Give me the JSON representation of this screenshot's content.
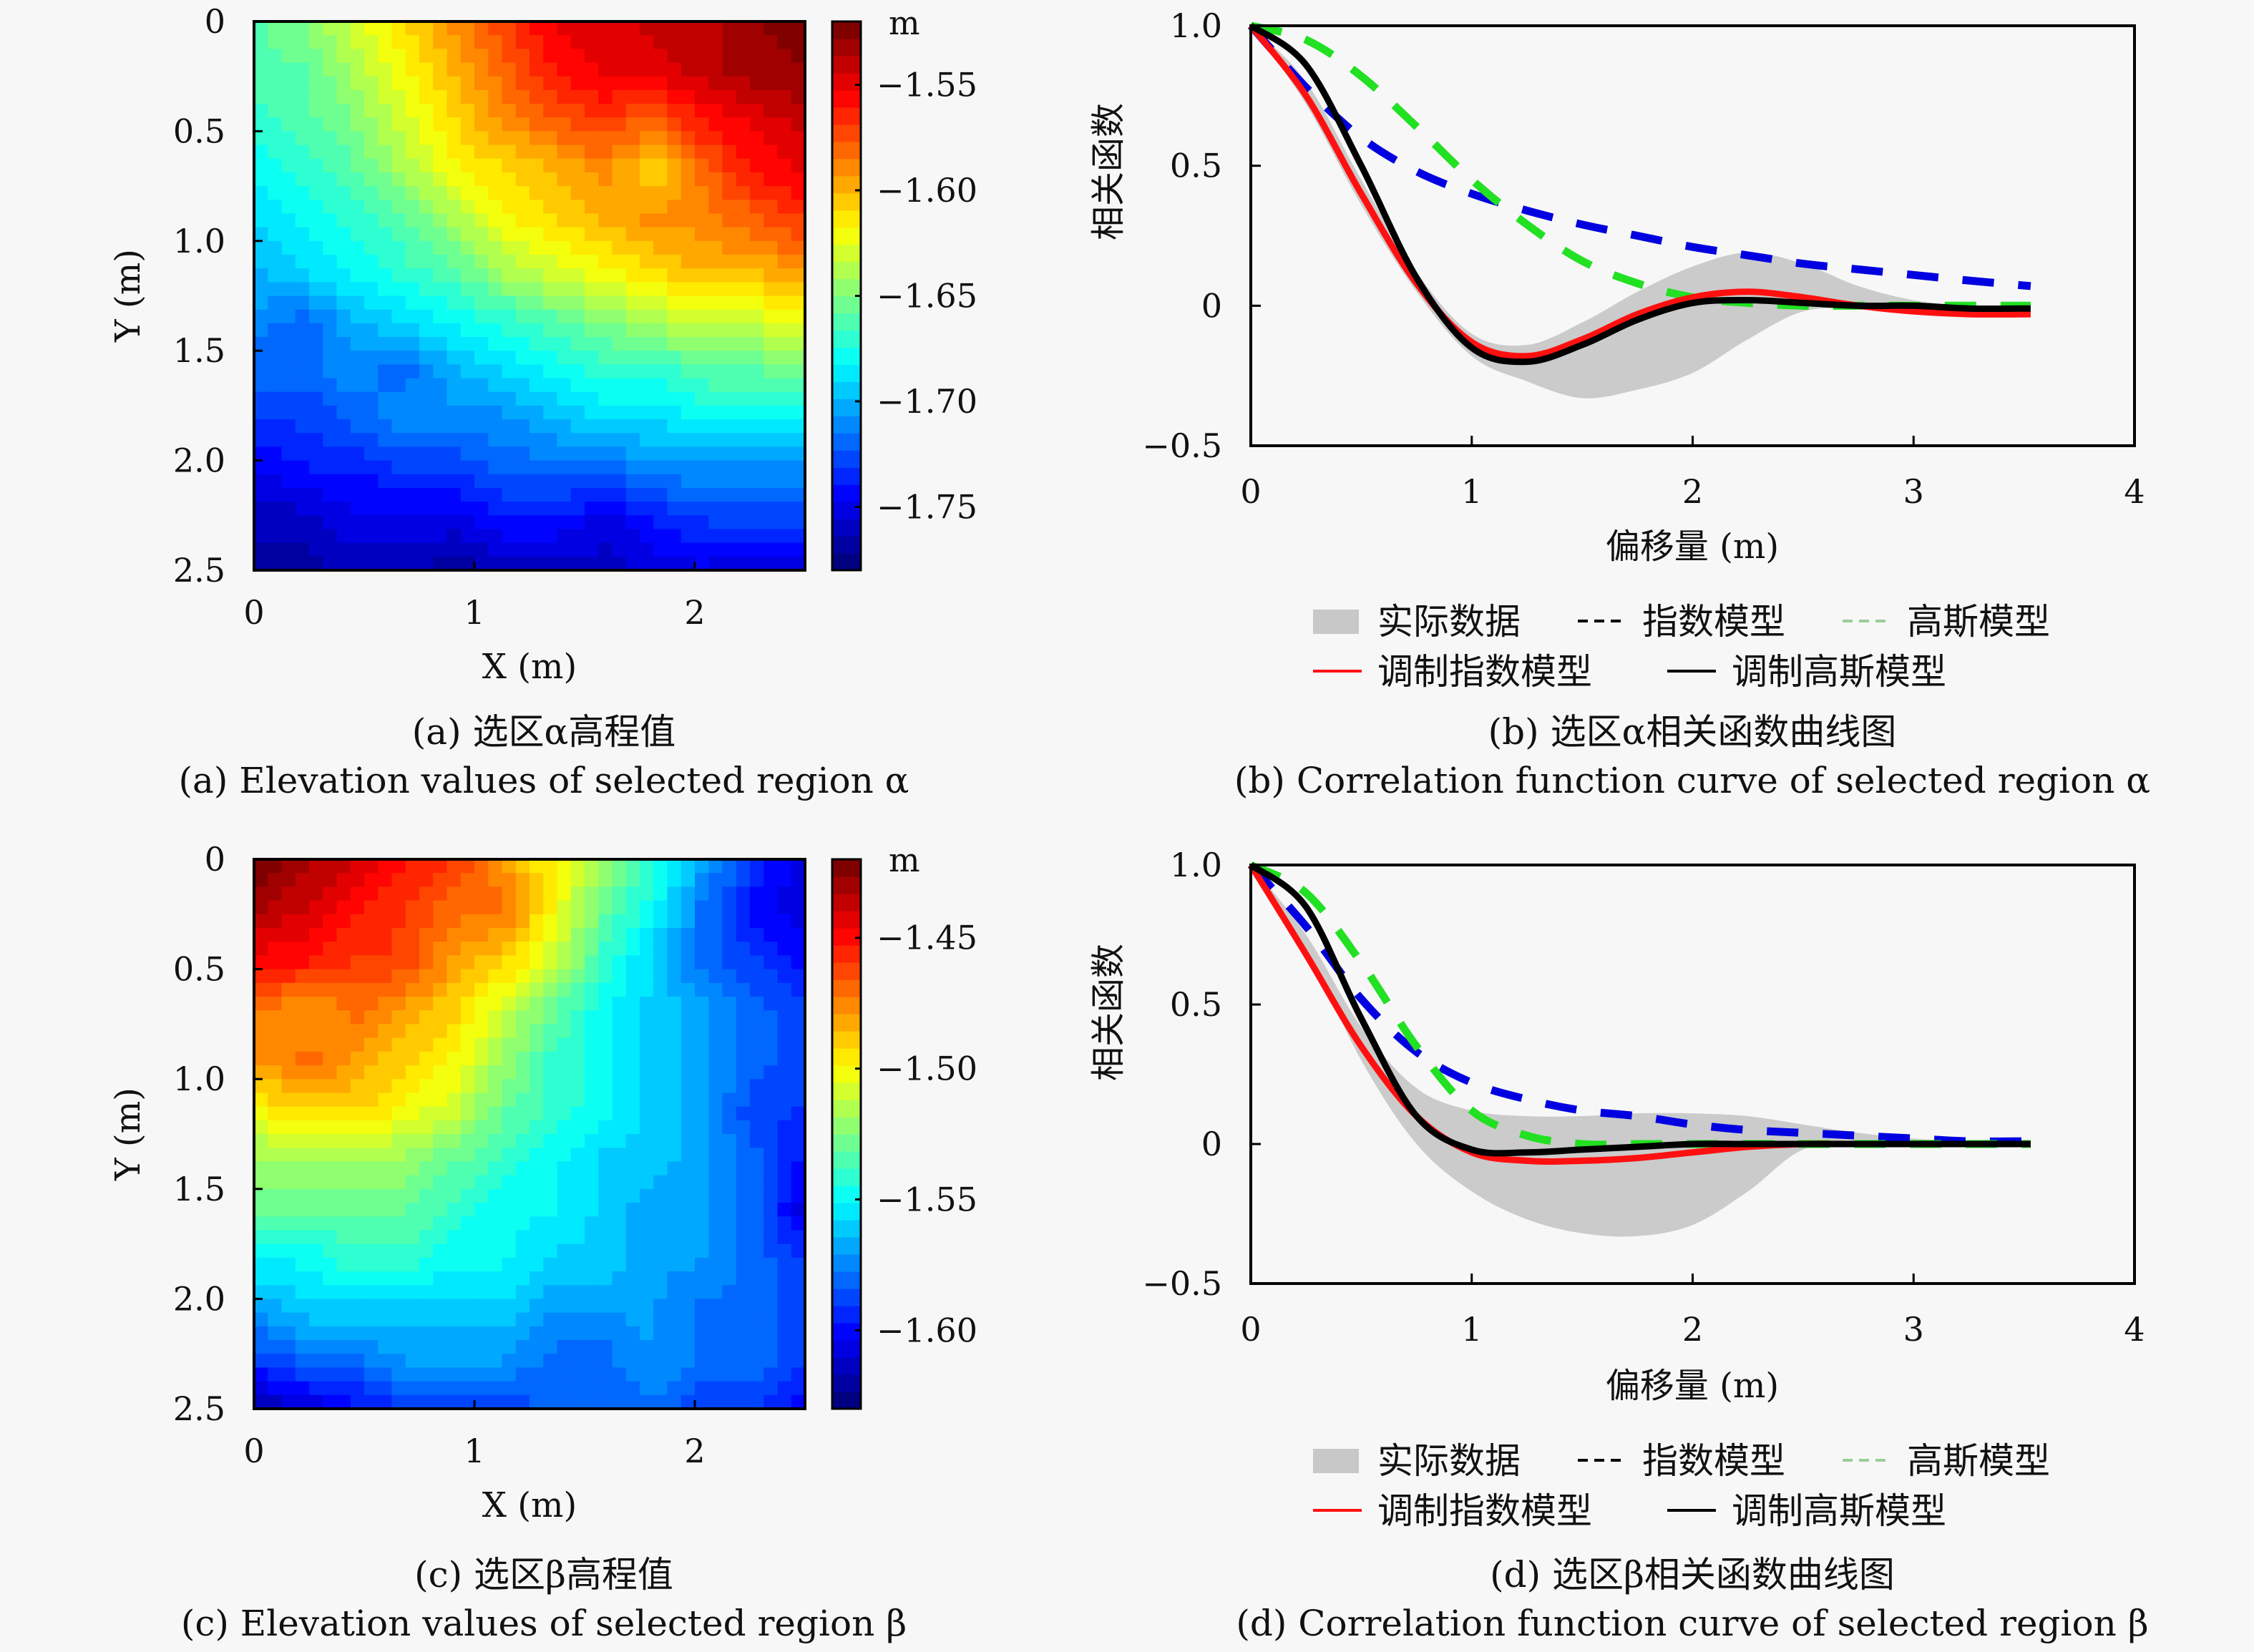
{
  "figure": {
    "panels": [
      {
        "id": "a",
        "caption_zh": "(a) 选区α高程值",
        "caption_en": "(a) Elevation values of selected region α",
        "xlabel": "X (m)",
        "ylabel": "Y (m)",
        "colorbar_unit": "m"
      },
      {
        "id": "b",
        "caption_zh": "(b) 选区α相关函数曲线图",
        "caption_en": "(b) Correlation function curve of selected region α",
        "xlabel": "偏移量 (m)",
        "ylabel": "相关函数"
      },
      {
        "id": "c",
        "caption_zh": "(c) 选区β高程值",
        "caption_en": "(c) Elevation values of selected region β",
        "xlabel": "X (m)",
        "ylabel": "Y (m)",
        "colorbar_unit": "m"
      },
      {
        "id": "d",
        "caption_zh": "(d) 选区β相关函数曲线图",
        "caption_en": "(d) Correlation function curve of selected region β",
        "xlabel": "偏移量 (m)",
        "ylabel": "相关函数"
      }
    ],
    "legend": {
      "items": [
        {
          "label": "实际数据",
          "color": "#c8c8c8",
          "style": "band"
        },
        {
          "label": "指数模型",
          "color": "#0000e0",
          "style": "dashed"
        },
        {
          "label": "高斯模型",
          "color": "#22e022",
          "style": "dashed"
        },
        {
          "label": "调制指数模型",
          "color": "#ff1010",
          "style": "solid"
        },
        {
          "label": "调制高斯模型",
          "color": "#000000",
          "style": "solid"
        }
      ]
    }
  },
  "chart_data": [
    {
      "id": "a",
      "type": "heatmap",
      "title": "(a) Elevation values of selected region α",
      "xlabel": "X (m)",
      "ylabel": "Y (m)",
      "xlim": [
        0,
        2.5
      ],
      "ylim": [
        0,
        2.5
      ],
      "xticks": [
        "0",
        "1",
        "2"
      ],
      "xtick_values": [
        0,
        1,
        2
      ],
      "yticks": [
        "0",
        "0.5",
        "1.0",
        "1.5",
        "2.0",
        "2.5"
      ],
      "ytick_values": [
        0,
        0.5,
        1.0,
        1.5,
        2.0,
        2.5
      ],
      "colormap": "jet",
      "colorbar": {
        "unit": "m",
        "range": [
          -1.78,
          -1.52
        ],
        "ticks": [
          "-1.55",
          "-1.60",
          "-1.65",
          "-1.70",
          "-1.75"
        ],
        "tick_values": [
          -1.55,
          -1.6,
          -1.65,
          -1.7,
          -1.75
        ]
      },
      "description": "High (red) at top-right, decreasing diagonally toward low (blue) at bottom; yellow band runs from top-center to right-middle",
      "grid_rows": [
        [
          -1.66,
          -1.65,
          -1.63,
          -1.61,
          -1.59,
          -1.57,
          -1.55,
          -1.55,
          -1.54,
          -1.54,
          -1.53,
          -1.52
        ],
        [
          -1.66,
          -1.66,
          -1.64,
          -1.62,
          -1.6,
          -1.58,
          -1.56,
          -1.55,
          -1.55,
          -1.54,
          -1.53,
          -1.53
        ],
        [
          -1.67,
          -1.66,
          -1.65,
          -1.63,
          -1.61,
          -1.59,
          -1.58,
          -1.57,
          -1.58,
          -1.56,
          -1.55,
          -1.54
        ],
        [
          -1.68,
          -1.67,
          -1.66,
          -1.64,
          -1.62,
          -1.61,
          -1.6,
          -1.59,
          -1.61,
          -1.58,
          -1.56,
          -1.55
        ],
        [
          -1.69,
          -1.68,
          -1.67,
          -1.66,
          -1.64,
          -1.62,
          -1.61,
          -1.6,
          -1.59,
          -1.59,
          -1.58,
          -1.57
        ],
        [
          -1.7,
          -1.69,
          -1.68,
          -1.67,
          -1.66,
          -1.64,
          -1.63,
          -1.62,
          -1.61,
          -1.6,
          -1.6,
          -1.59
        ],
        [
          -1.71,
          -1.72,
          -1.7,
          -1.69,
          -1.68,
          -1.67,
          -1.66,
          -1.65,
          -1.64,
          -1.63,
          -1.63,
          -1.62
        ],
        [
          -1.72,
          -1.72,
          -1.71,
          -1.72,
          -1.7,
          -1.69,
          -1.68,
          -1.67,
          -1.67,
          -1.66,
          -1.66,
          -1.65
        ],
        [
          -1.73,
          -1.73,
          -1.72,
          -1.71,
          -1.71,
          -1.71,
          -1.7,
          -1.69,
          -1.69,
          -1.68,
          -1.68,
          -1.68
        ],
        [
          -1.75,
          -1.74,
          -1.74,
          -1.73,
          -1.73,
          -1.72,
          -1.72,
          -1.72,
          -1.71,
          -1.71,
          -1.71,
          -1.71
        ],
        [
          -1.76,
          -1.76,
          -1.75,
          -1.75,
          -1.75,
          -1.74,
          -1.74,
          -1.75,
          -1.74,
          -1.73,
          -1.73,
          -1.73
        ],
        [
          -1.77,
          -1.77,
          -1.76,
          -1.76,
          -1.77,
          -1.76,
          -1.76,
          -1.76,
          -1.75,
          -1.75,
          -1.76,
          -1.75
        ]
      ]
    },
    {
      "id": "b",
      "type": "line",
      "title": "(b) Correlation function curve of selected region α",
      "xlabel": "偏移量 (m)",
      "ylabel": "相关函数",
      "xlim": [
        0,
        4
      ],
      "ylim": [
        -0.5,
        1.0
      ],
      "xticks": [
        "0",
        "1",
        "2",
        "3",
        "4"
      ],
      "xtick_values": [
        0,
        1,
        2,
        3,
        4
      ],
      "yticks": [
        "1.0",
        "0.5",
        "0",
        "−0.5"
      ],
      "ytick_values": [
        1.0,
        0.5,
        0,
        -0.5
      ],
      "legend_position": "bottom",
      "x": [
        0,
        0.25,
        0.5,
        0.75,
        1.0,
        1.25,
        1.5,
        1.75,
        2.0,
        2.25,
        2.5,
        2.75,
        3.0,
        3.25,
        3.53
      ],
      "band": {
        "name": "实际数据",
        "upper": [
          1.0,
          0.8,
          0.45,
          0.12,
          -0.1,
          -0.14,
          -0.06,
          0.05,
          0.14,
          0.19,
          0.15,
          0.07,
          0.02,
          0.0,
          0.0
        ],
        "lower": [
          1.0,
          0.72,
          0.36,
          0.05,
          -0.18,
          -0.27,
          -0.33,
          -0.3,
          -0.24,
          -0.12,
          -0.02,
          -0.01,
          -0.01,
          -0.01,
          0.0
        ]
      },
      "series": [
        {
          "name": "指数模型",
          "style": "dashed",
          "color": "#0000e0",
          "values": [
            1.0,
            0.78,
            0.6,
            0.48,
            0.4,
            0.34,
            0.29,
            0.25,
            0.21,
            0.18,
            0.15,
            0.13,
            0.11,
            0.09,
            0.07
          ]
        },
        {
          "name": "高斯模型",
          "style": "dashed",
          "color": "#22e022",
          "values": [
            1.0,
            0.95,
            0.82,
            0.64,
            0.45,
            0.29,
            0.16,
            0.08,
            0.03,
            0.01,
            0.0,
            0.0,
            0.0,
            0.0,
            0.0
          ]
        },
        {
          "name": "调制指数模型",
          "style": "solid",
          "color": "#ff1010",
          "values": [
            1.0,
            0.75,
            0.4,
            0.08,
            -0.13,
            -0.18,
            -0.12,
            -0.03,
            0.03,
            0.05,
            0.03,
            0.0,
            -0.02,
            -0.03,
            -0.03
          ]
        },
        {
          "name": "调制高斯模型",
          "style": "solid",
          "color": "#000000",
          "values": [
            1.0,
            0.86,
            0.5,
            0.1,
            -0.15,
            -0.2,
            -0.14,
            -0.05,
            0.01,
            0.02,
            0.01,
            0.0,
            0.0,
            -0.01,
            -0.01
          ]
        }
      ]
    },
    {
      "id": "c",
      "type": "heatmap",
      "title": "(c) Elevation values of selected region β",
      "xlabel": "X (m)",
      "ylabel": "Y (m)",
      "xlim": [
        0,
        2.5
      ],
      "ylim": [
        0,
        2.5
      ],
      "xticks": [
        "0",
        "1",
        "2"
      ],
      "xtick_values": [
        0,
        1,
        2
      ],
      "yticks": [
        "0",
        "0.5",
        "1.0",
        "1.5",
        "2.0",
        "2.5"
      ],
      "ytick_values": [
        0,
        0.5,
        1.0,
        1.5,
        2.0,
        2.5
      ],
      "colormap": "jet",
      "colorbar": {
        "unit": "m",
        "range": [
          -1.63,
          -1.42
        ],
        "ticks": [
          "-1.45",
          "-1.50",
          "-1.55",
          "-1.60"
        ],
        "tick_values": [
          -1.45,
          -1.5,
          -1.55,
          -1.6
        ]
      },
      "description": "High (red) at top-left, decreasing radially toward low (blue) at right and bottom-left corner",
      "grid_rows": [
        [
          -1.42,
          -1.43,
          -1.44,
          -1.45,
          -1.46,
          -1.48,
          -1.5,
          -1.52,
          -1.54,
          -1.57,
          -1.59,
          -1.61
        ],
        [
          -1.43,
          -1.44,
          -1.45,
          -1.46,
          -1.47,
          -1.47,
          -1.5,
          -1.53,
          -1.55,
          -1.58,
          -1.6,
          -1.61
        ],
        [
          -1.45,
          -1.45,
          -1.46,
          -1.46,
          -1.48,
          -1.49,
          -1.51,
          -1.54,
          -1.56,
          -1.58,
          -1.59,
          -1.6
        ],
        [
          -1.47,
          -1.48,
          -1.47,
          -1.48,
          -1.49,
          -1.51,
          -1.53,
          -1.55,
          -1.56,
          -1.57,
          -1.58,
          -1.59
        ],
        [
          -1.48,
          -1.47,
          -1.48,
          -1.49,
          -1.5,
          -1.52,
          -1.54,
          -1.55,
          -1.56,
          -1.57,
          -1.58,
          -1.59
        ],
        [
          -1.5,
          -1.49,
          -1.49,
          -1.5,
          -1.51,
          -1.53,
          -1.54,
          -1.55,
          -1.56,
          -1.57,
          -1.59,
          -1.59
        ],
        [
          -1.52,
          -1.52,
          -1.52,
          -1.52,
          -1.53,
          -1.54,
          -1.55,
          -1.56,
          -1.56,
          -1.57,
          -1.58,
          -1.6
        ],
        [
          -1.53,
          -1.53,
          -1.53,
          -1.53,
          -1.54,
          -1.55,
          -1.55,
          -1.56,
          -1.57,
          -1.57,
          -1.58,
          -1.61
        ],
        [
          -1.55,
          -1.55,
          -1.54,
          -1.54,
          -1.55,
          -1.55,
          -1.56,
          -1.56,
          -1.57,
          -1.57,
          -1.58,
          -1.59
        ],
        [
          -1.57,
          -1.56,
          -1.56,
          -1.56,
          -1.56,
          -1.56,
          -1.57,
          -1.57,
          -1.57,
          -1.58,
          -1.58,
          -1.59
        ],
        [
          -1.59,
          -1.58,
          -1.58,
          -1.57,
          -1.57,
          -1.57,
          -1.58,
          -1.58,
          -1.57,
          -1.58,
          -1.58,
          -1.59
        ],
        [
          -1.62,
          -1.61,
          -1.6,
          -1.59,
          -1.59,
          -1.59,
          -1.58,
          -1.58,
          -1.58,
          -1.59,
          -1.59,
          -1.6
        ]
      ]
    },
    {
      "id": "d",
      "type": "line",
      "title": "(d) Correlation function curve of selected region β",
      "xlabel": "偏移量 (m)",
      "ylabel": "相关函数",
      "xlim": [
        0,
        4
      ],
      "ylim": [
        -0.5,
        1.0
      ],
      "xticks": [
        "0",
        "1",
        "2",
        "3",
        "4"
      ],
      "xtick_values": [
        0,
        1,
        2,
        3,
        4
      ],
      "yticks": [
        "1.0",
        "0.5",
        "0",
        "−0.5"
      ],
      "ytick_values": [
        1.0,
        0.5,
        0,
        -0.5
      ],
      "legend_position": "bottom",
      "x": [
        0,
        0.25,
        0.5,
        0.75,
        1.0,
        1.25,
        1.5,
        1.75,
        2.0,
        2.25,
        2.5,
        2.75,
        3.0,
        3.25,
        3.53
      ],
      "band": {
        "name": "实际数据",
        "upper": [
          1.0,
          0.75,
          0.42,
          0.2,
          0.12,
          0.1,
          0.1,
          0.11,
          0.11,
          0.1,
          0.07,
          0.04,
          0.02,
          0.01,
          0.01
        ],
        "lower": [
          1.0,
          0.7,
          0.3,
          0.0,
          -0.17,
          -0.27,
          -0.32,
          -0.33,
          -0.29,
          -0.17,
          -0.02,
          -0.01,
          0.0,
          0.0,
          0.0
        ]
      },
      "series": [
        {
          "name": "指数模型",
          "style": "dashed",
          "color": "#0000e0",
          "values": [
            1.0,
            0.78,
            0.52,
            0.33,
            0.22,
            0.16,
            0.12,
            0.1,
            0.07,
            0.05,
            0.04,
            0.03,
            0.02,
            0.01,
            0.01
          ]
        },
        {
          "name": "高斯模型",
          "style": "dashed",
          "color": "#22e022",
          "values": [
            1.0,
            0.9,
            0.65,
            0.35,
            0.12,
            0.03,
            0.0,
            0.0,
            0.0,
            0.0,
            0.0,
            0.0,
            0.0,
            0.0,
            0.0
          ]
        },
        {
          "name": "调制指数模型",
          "style": "solid",
          "color": "#ff1010",
          "values": [
            1.0,
            0.68,
            0.35,
            0.1,
            -0.03,
            -0.06,
            -0.06,
            -0.05,
            -0.03,
            -0.01,
            0.0,
            0.0,
            0.0,
            0.0,
            0.0
          ]
        },
        {
          "name": "调制高斯模型",
          "style": "solid",
          "color": "#000000",
          "values": [
            1.0,
            0.85,
            0.45,
            0.1,
            -0.02,
            -0.03,
            -0.02,
            -0.01,
            0.0,
            0.0,
            0.0,
            0.0,
            0.0,
            0.0,
            0.0
          ]
        }
      ]
    }
  ]
}
